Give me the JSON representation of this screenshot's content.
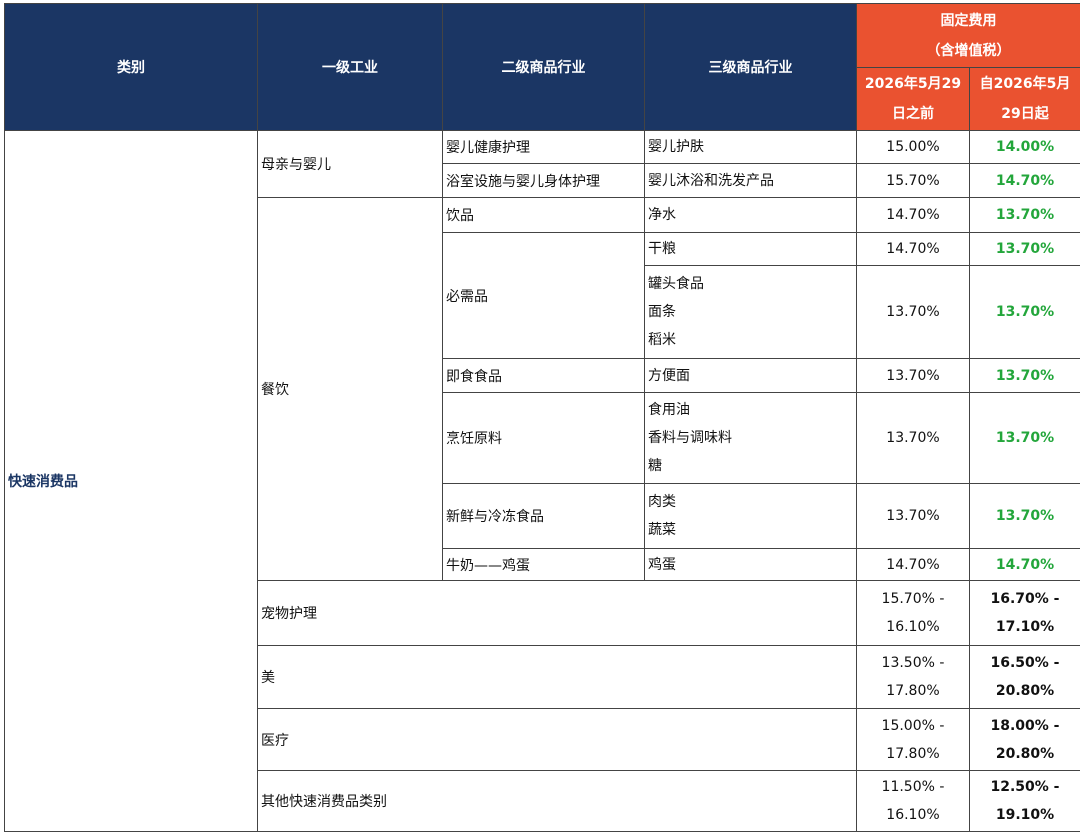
{
  "table": {
    "header": {
      "category": "类别",
      "level1": "一级工业",
      "level2": "二级商品行业",
      "level3": "三级商品行业",
      "fee_title": [
        "固定费用",
        "（含增值税）"
      ],
      "before": [
        "2026年5月29",
        "日之前"
      ],
      "after": [
        "自2026年5月",
        "29日起"
      ]
    },
    "category": "快速消费品",
    "groups": [
      {
        "name": "母亲与婴儿",
        "items": [
          {
            "name": "婴儿健康护理",
            "subs": [
              {
                "lines": [
                  "婴儿护肤"
                ],
                "before": "15.00%",
                "after": "14.00%"
              }
            ]
          },
          {
            "name": "浴室设施与婴儿身体护理",
            "subs": [
              {
                "lines": [
                  "婴儿沐浴和洗发产品"
                ],
                "before": "15.70%",
                "after": "14.70%"
              }
            ]
          }
        ]
      },
      {
        "name": "餐饮",
        "items": [
          {
            "name": "饮品",
            "subs": [
              {
                "lines": [
                  "净水"
                ],
                "before": "14.70%",
                "after": "13.70%"
              }
            ]
          },
          {
            "name": "必需品",
            "subs": [
              {
                "lines": [
                  "干粮"
                ],
                "before": "14.70%",
                "after": "13.70%"
              },
              {
                "lines": [
                  "罐头食品",
                  "面条",
                  "稻米"
                ],
                "before": "13.70%",
                "after": "13.70%"
              }
            ]
          },
          {
            "name": "即食食品",
            "subs": [
              {
                "lines": [
                  "方便面"
                ],
                "before": "13.70%",
                "after": "13.70%"
              }
            ]
          },
          {
            "name": "烹饪原料",
            "subs": [
              {
                "lines": [
                  "食用油",
                  "香料与调味料",
                  "糖"
                ],
                "before": "13.70%",
                "after": "13.70%"
              }
            ]
          },
          {
            "name": "新鲜与冷冻食品",
            "subs": [
              {
                "lines": [
                  "肉类",
                  "蔬菜"
                ],
                "before": "13.70%",
                "after": "13.70%"
              }
            ]
          },
          {
            "name": "牛奶——鸡蛋",
            "subs": [
              {
                "lines": [
                  "鸡蛋"
                ],
                "before": "14.70%",
                "after": "14.70%"
              }
            ]
          }
        ]
      },
      {
        "name": "宠物护理",
        "before": [
          "15.70% -",
          "16.10%"
        ],
        "after": [
          "16.70% -",
          "17.10%"
        ]
      },
      {
        "name": "美",
        "before": [
          "13.50% -",
          "17.80%"
        ],
        "after": [
          "16.50% -",
          "20.80%"
        ]
      },
      {
        "name": "医疗",
        "before": [
          "15.00% -",
          "17.80%"
        ],
        "after": [
          "18.00% -",
          "20.80%"
        ]
      },
      {
        "name": "其他快速消费品类别",
        "before": [
          "11.50% -",
          "16.10%"
        ],
        "after": [
          "12.50% -",
          "19.10%"
        ]
      }
    ]
  }
}
